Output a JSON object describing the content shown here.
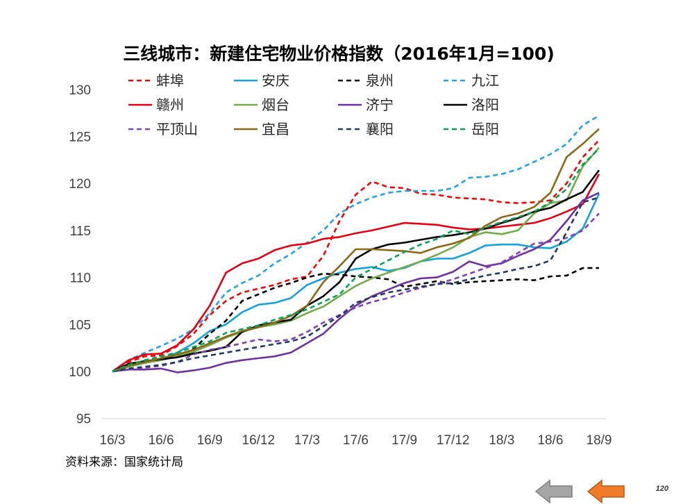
{
  "chart_data": {
    "type": "line",
    "title": "三线城市：新建住宅物业价格指数（2016年1月=100)",
    "xlabel": "",
    "ylabel": "",
    "ylim": [
      95,
      130
    ],
    "yticks": [
      "95",
      "100",
      "105",
      "110",
      "115",
      "120",
      "125",
      "130"
    ],
    "x_start": "16/3",
    "x_ticks": [
      "16/3",
      "16/6",
      "16/9",
      "16/12",
      "17/3",
      "17/6",
      "17/9",
      "17/12",
      "18/3",
      "18/6",
      "18/9"
    ],
    "grid": false,
    "legend": "top",
    "series": [
      {
        "name": "蚌埠",
        "color": "#FF0000",
        "dash": true,
        "values": [
          100,
          101.0,
          101.6,
          101.7,
          102.7,
          104.0,
          106.0,
          107.5,
          108.4,
          108.8,
          109.2,
          109.8,
          110.1,
          112.3,
          116.0,
          118.8,
          120.2,
          119.6,
          119.5,
          118.9,
          118.8,
          118.5,
          118.4,
          118.3,
          118.0,
          117.9,
          118.0,
          118.2,
          120.0,
          122.8,
          124.6
        ]
      },
      {
        "name": "安庆",
        "color": "#0FA4E0",
        "dash": false,
        "values": [
          100,
          100.5,
          100.9,
          101.3,
          102.0,
          103.0,
          104.3,
          105.0,
          106.3,
          107.1,
          107.3,
          107.8,
          109.2,
          109.9,
          110.5,
          110.9,
          111.1,
          110.7,
          111.0,
          111.7,
          112.0,
          112.0,
          112.6,
          113.4,
          113.5,
          113.5,
          113.2,
          113.1,
          113.8,
          115.2,
          118.9
        ]
      },
      {
        "name": "泉州",
        "color": "#000000",
        "dash": true,
        "values": [
          100,
          100.6,
          101.0,
          101.3,
          101.6,
          102.4,
          104.0,
          105.4,
          107.5,
          108.2,
          108.9,
          109.4,
          110.0,
          110.4,
          110.3,
          110.1,
          110.0,
          109.8,
          109.0,
          109.3,
          109.6,
          109.3,
          109.5,
          109.6,
          109.7,
          109.8,
          109.7,
          110.1,
          110.2,
          111.0,
          111.0
        ]
      },
      {
        "name": "九江",
        "color": "#1FA3EA",
        "dash": true,
        "values": [
          100,
          101.2,
          102.0,
          102.7,
          103.5,
          104.5,
          106.2,
          108.4,
          109.4,
          110.2,
          111.5,
          112.5,
          113.7,
          115.0,
          116.8,
          117.8,
          118.5,
          119.0,
          119.2,
          119.2,
          119.2,
          119.5,
          120.6,
          120.7,
          121.0,
          121.5,
          122.3,
          123.1,
          124.2,
          126.2,
          127.2
        ]
      },
      {
        "name": "赣州",
        "color": "#E60012",
        "dash": false,
        "values": [
          100,
          101.2,
          101.8,
          101.9,
          102.8,
          104.5,
          107.0,
          110.5,
          111.5,
          112.0,
          112.9,
          113.4,
          113.6,
          114.1,
          114.3,
          114.7,
          115.0,
          115.4,
          115.8,
          115.7,
          115.6,
          115.3,
          115.1,
          115.2,
          115.4,
          115.6,
          115.8,
          116.3,
          117.0,
          117.8,
          121.0
        ]
      },
      {
        "name": "烟台",
        "color": "#70AD47",
        "dash": false,
        "values": [
          100,
          100.5,
          100.9,
          101.2,
          101.6,
          102.1,
          102.8,
          103.6,
          104.2,
          104.7,
          105.0,
          105.4,
          106.2,
          106.9,
          108.0,
          109.1,
          109.9,
          110.5,
          111.1,
          111.7,
          112.4,
          113.2,
          114.3,
          114.8,
          114.6,
          115.0,
          116.8,
          117.9,
          118.2,
          121.8,
          123.8
        ]
      },
      {
        "name": "济宁",
        "color": "#7030A0",
        "dash": false,
        "values": [
          100,
          100.2,
          100.2,
          100.3,
          99.9,
          100.1,
          100.4,
          100.9,
          101.2,
          101.4,
          101.6,
          102.0,
          103.0,
          104.0,
          105.6,
          107.0,
          108.0,
          108.7,
          109.4,
          109.9,
          110.0,
          110.6,
          111.7,
          111.2,
          111.5,
          112.3,
          113.0,
          114.0,
          116.0,
          118.2,
          119.0
        ]
      },
      {
        "name": "洛阳",
        "color": "#000000",
        "dash": false,
        "values": [
          100,
          100.8,
          101.1,
          101.3,
          101.5,
          101.9,
          102.2,
          102.6,
          104.2,
          104.9,
          105.2,
          105.5,
          107.0,
          108.0,
          109.5,
          112.0,
          113.0,
          113.5,
          113.7,
          114.0,
          114.3,
          114.5,
          114.8,
          115.2,
          115.8,
          116.3,
          117.0,
          117.4,
          118.3,
          119.1,
          121.4
        ]
      },
      {
        "name": "平顶山",
        "color": "#7F3FBF",
        "dash": true,
        "values": [
          100,
          100.2,
          100.4,
          100.6,
          101.0,
          101.8,
          102.3,
          102.6,
          103.0,
          103.4,
          103.2,
          103.4,
          104.2,
          105.2,
          106.0,
          106.8,
          107.4,
          107.8,
          108.4,
          108.9,
          109.3,
          109.8,
          110.4,
          111.0,
          111.6,
          112.6,
          113.6,
          113.8,
          114.2,
          115.0,
          116.8
        ]
      },
      {
        "name": "宜昌",
        "color": "#8B6914",
        "dash": false,
        "values": [
          100,
          100.6,
          101.0,
          101.4,
          101.8,
          102.3,
          103.0,
          103.7,
          104.3,
          104.7,
          105.2,
          105.9,
          107.0,
          109.5,
          111.2,
          113.0,
          113.0,
          112.9,
          112.8,
          112.6,
          113.2,
          113.6,
          114.2,
          115.5,
          116.4,
          116.8,
          117.5,
          119.0,
          122.8,
          124.2,
          125.8
        ]
      },
      {
        "name": "襄阳",
        "color": "#1F3864",
        "dash": true,
        "values": [
          100,
          100.3,
          100.5,
          100.7,
          101.0,
          101.4,
          101.7,
          102.0,
          102.3,
          102.6,
          102.9,
          103.2,
          103.7,
          104.8,
          105.9,
          107.3,
          107.9,
          108.4,
          108.7,
          109.0,
          109.3,
          109.4,
          109.8,
          110.2,
          110.5,
          110.9,
          111.2,
          111.8,
          114.8,
          118.0,
          118.5
        ]
      },
      {
        "name": "岳阳",
        "color": "#00A651",
        "dash": true,
        "values": [
          100,
          100.7,
          101.2,
          101.6,
          102.0,
          102.6,
          103.2,
          104.1,
          104.5,
          104.9,
          105.5,
          106.0,
          106.6,
          107.4,
          108.2,
          110.0,
          110.9,
          111.8,
          112.7,
          113.5,
          114.1,
          115.0,
          114.6,
          115.3,
          115.9,
          116.4,
          117.0,
          118.0,
          119.4,
          122.0,
          123.7
        ]
      }
    ]
  },
  "source": "资料来源：国家统计局",
  "page_number": "120",
  "nav": {
    "back_color": "#A6A6A6",
    "forward_color": "#F07C2A"
  }
}
